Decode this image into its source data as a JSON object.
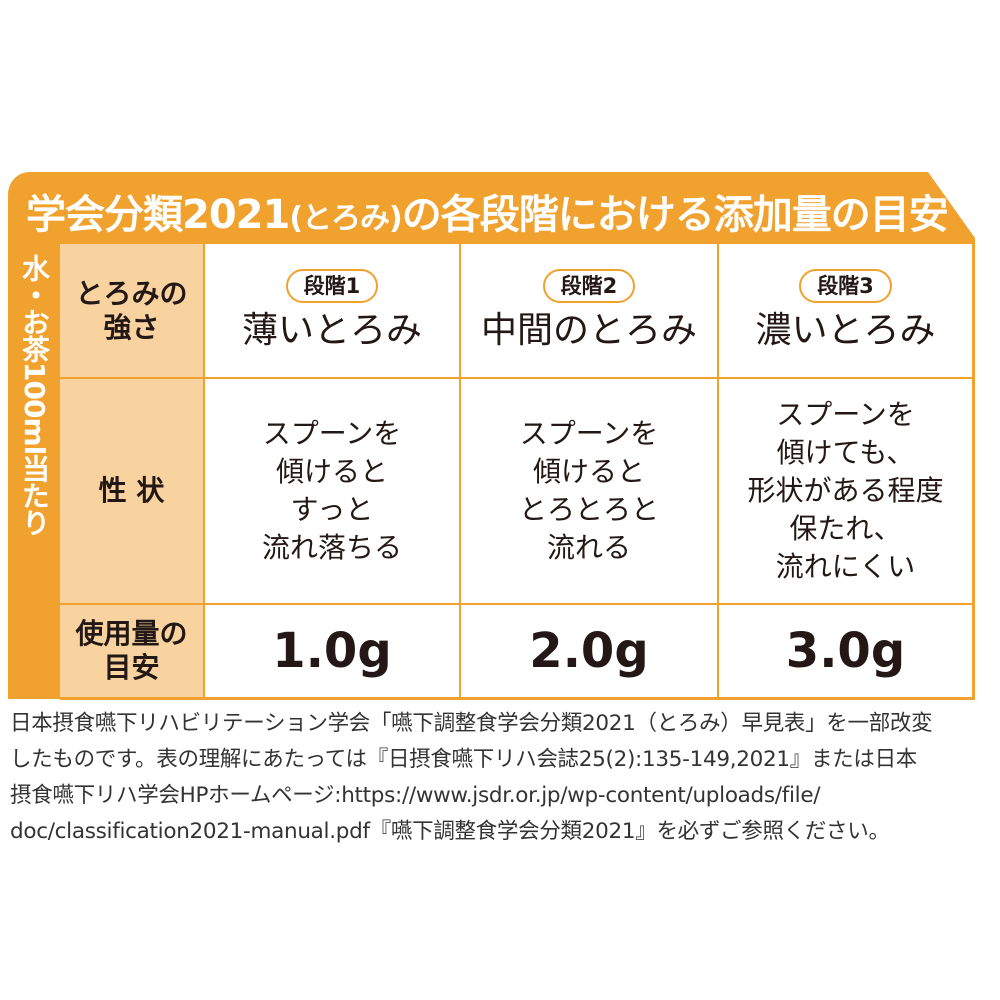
{
  "title": {
    "main": "学会分類2021",
    "paren": "(とろみ)",
    "rest": "の各段階における添加量の目安"
  },
  "side_label": "水・お茶100ml当たり",
  "row_headers": [
    "とろみの\n強さ",
    "性 状",
    "使用量の\n目安"
  ],
  "columns": [
    {
      "badge": "段階1",
      "level": "薄いとろみ",
      "description": [
        "スプーンを",
        "傾けると",
        "すっと",
        "流れ落ちる"
      ],
      "amount": "1.0g"
    },
    {
      "badge": "段階2",
      "level": "中間のとろみ",
      "description": [
        "スプーンを",
        "傾けると",
        "とろとろと",
        "流れる"
      ],
      "amount": "2.0g"
    },
    {
      "badge": "段階3",
      "level": "濃いとろみ",
      "description": [
        "スプーンを",
        "傾けても、",
        "形状がある程度",
        "保たれ、",
        "流れにくい"
      ],
      "amount": "3.0g"
    }
  ],
  "footnote": [
    "日本摂食嚥下リハビリテーション学会「嚥下調整食学会分類2021（とろみ）早見表」を一部改変",
    "したものです。表の理解にあたっては『日摂食嚥下リハ会誌25(2):135-149,2021』または日本",
    "摂食嚥下リハ学会HPホームページ:https://www.jsdr.or.jp/wp-content/uploads/file/",
    "doc/classification2021-manual.pdf『嚥下調整食学会分類2021』を必ずご参照ください。"
  ],
  "colors": {
    "accent": "#f0a12e",
    "header_cell": "#f8d3a0",
    "text": "#231815"
  }
}
